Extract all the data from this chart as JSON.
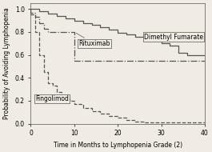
{
  "title": "",
  "xlabel": "Time in Months to Lymphopenia Grade (2)",
  "ylabel": "Probability of Avoiding Lymphopenia",
  "xlim": [
    0,
    40
  ],
  "ylim": [
    0,
    1.05
  ],
  "xticks": [
    0,
    10,
    20,
    30,
    40
  ],
  "yticks": [
    0.0,
    0.2,
    0.4,
    0.6,
    0.8,
    1.0
  ],
  "background_color": "#f0ece4",
  "dimethyl_x": [
    0,
    0,
    2,
    2,
    4,
    4,
    6,
    6,
    8,
    8,
    10,
    10,
    12,
    12,
    14,
    14,
    16,
    16,
    18,
    18,
    20,
    20,
    22,
    22,
    24,
    24,
    26,
    26,
    28,
    28,
    30,
    30,
    32,
    32,
    34,
    34,
    36,
    36,
    38,
    38,
    40
  ],
  "dimethyl_y": [
    1.0,
    1.0,
    1.0,
    0.98,
    0.98,
    0.96,
    0.96,
    0.94,
    0.94,
    0.92,
    0.92,
    0.9,
    0.9,
    0.88,
    0.88,
    0.86,
    0.86,
    0.84,
    0.84,
    0.82,
    0.82,
    0.79,
    0.79,
    0.78,
    0.78,
    0.76,
    0.76,
    0.74,
    0.74,
    0.72,
    0.72,
    0.7,
    0.7,
    0.68,
    0.68,
    0.62,
    0.62,
    0.6,
    0.6,
    0.6,
    0.6
  ],
  "rituximab_x": [
    0,
    0,
    1,
    1,
    2,
    2,
    3,
    3,
    4,
    4,
    6,
    6,
    8,
    8,
    10,
    10,
    14,
    14,
    18,
    18,
    22,
    22,
    26,
    26,
    30,
    30,
    34,
    34,
    38,
    38,
    40
  ],
  "rituximab_y": [
    1.0,
    0.97,
    0.97,
    0.93,
    0.93,
    0.88,
    0.88,
    0.83,
    0.83,
    0.8,
    0.8,
    0.8,
    0.8,
    0.8,
    0.8,
    0.55,
    0.55,
    0.55,
    0.55,
    0.55,
    0.55,
    0.55,
    0.55,
    0.55,
    0.55,
    0.55,
    0.55,
    0.55,
    0.55,
    0.55,
    0.55
  ],
  "fingolimod_x": [
    0,
    0,
    1,
    1,
    2,
    2,
    3,
    3,
    4,
    4,
    5,
    5,
    6,
    6,
    7,
    7,
    8,
    8,
    9,
    9,
    10,
    10,
    12,
    12,
    14,
    14,
    16,
    16,
    18,
    18,
    20,
    20,
    22,
    22,
    24,
    24,
    26,
    26,
    28,
    28,
    30,
    30,
    32,
    32,
    34,
    34,
    36,
    36,
    38,
    38,
    40
  ],
  "fingolimod_y": [
    1.0,
    0.95,
    0.95,
    0.8,
    0.8,
    0.6,
    0.6,
    0.45,
    0.45,
    0.35,
    0.35,
    0.33,
    0.33,
    0.28,
    0.28,
    0.24,
    0.24,
    0.22,
    0.22,
    0.2,
    0.2,
    0.17,
    0.17,
    0.14,
    0.14,
    0.11,
    0.11,
    0.09,
    0.09,
    0.07,
    0.07,
    0.05,
    0.05,
    0.03,
    0.03,
    0.02,
    0.02,
    0.01,
    0.01,
    0.01,
    0.01,
    0.01,
    0.01,
    0.01,
    0.01,
    0.01,
    0.01,
    0.01,
    0.01,
    0.01,
    0.01
  ],
  "dimethyl_label": "Dimethyl Fumarate",
  "rituximab_label": "Rituximab",
  "fingolimod_label": "Fingolimod",
  "dimethyl_color": "#555555",
  "rituximab_color": "#555555",
  "fingolimod_color": "#555555",
  "label_fontsize": 5.5,
  "tick_fontsize": 5.5,
  "xlabel_fontsize": 5.5,
  "ylabel_fontsize": 5.5
}
